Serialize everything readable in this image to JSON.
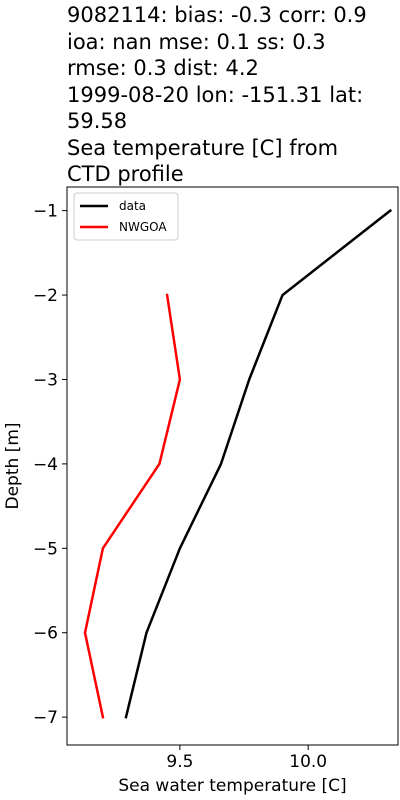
{
  "title_lines": [
    "9082114: bias: -0.3  corr: 0.9",
    "ioa: nan  mse: 0.1  ss: 0.3",
    "rmse: 0.3  dist: 4.2",
    "1999-08-20 lon: -151.31 lat:",
    "59.58",
    "Sea temperature [C] from",
    "CTD profile"
  ],
  "chart_data": {
    "type": "line",
    "xlabel": "Sea water temperature [C]",
    "ylabel": "Depth [m]",
    "xlim": [
      9.06,
      10.35
    ],
    "ylim": [
      -7.33,
      -0.72
    ],
    "xticks": [
      9.5,
      10.0
    ],
    "xtick_labels": [
      "9.5",
      "10.0"
    ],
    "yticks": [
      -1,
      -2,
      -3,
      -4,
      -5,
      -6,
      -7
    ],
    "ytick_labels": [
      "−1",
      "−2",
      "−3",
      "−4",
      "−5",
      "−6",
      "−7"
    ],
    "grid": false,
    "legend_position": "upper-left",
    "series": [
      {
        "name": "data",
        "color": "#000000",
        "points": [
          {
            "x": 10.32,
            "y": -1
          },
          {
            "x": 9.9,
            "y": -2
          },
          {
            "x": 9.77,
            "y": -3
          },
          {
            "x": 9.66,
            "y": -4
          },
          {
            "x": 9.5,
            "y": -5
          },
          {
            "x": 9.37,
            "y": -6
          },
          {
            "x": 9.29,
            "y": -7
          }
        ]
      },
      {
        "name": "NWGOA",
        "color": "#ff0000",
        "points": [
          {
            "x": 9.45,
            "y": -2
          },
          {
            "x": 9.5,
            "y": -3
          },
          {
            "x": 9.42,
            "y": -4
          },
          {
            "x": 9.2,
            "y": -5
          },
          {
            "x": 9.13,
            "y": -6
          },
          {
            "x": 9.2,
            "y": -7
          }
        ]
      }
    ]
  }
}
